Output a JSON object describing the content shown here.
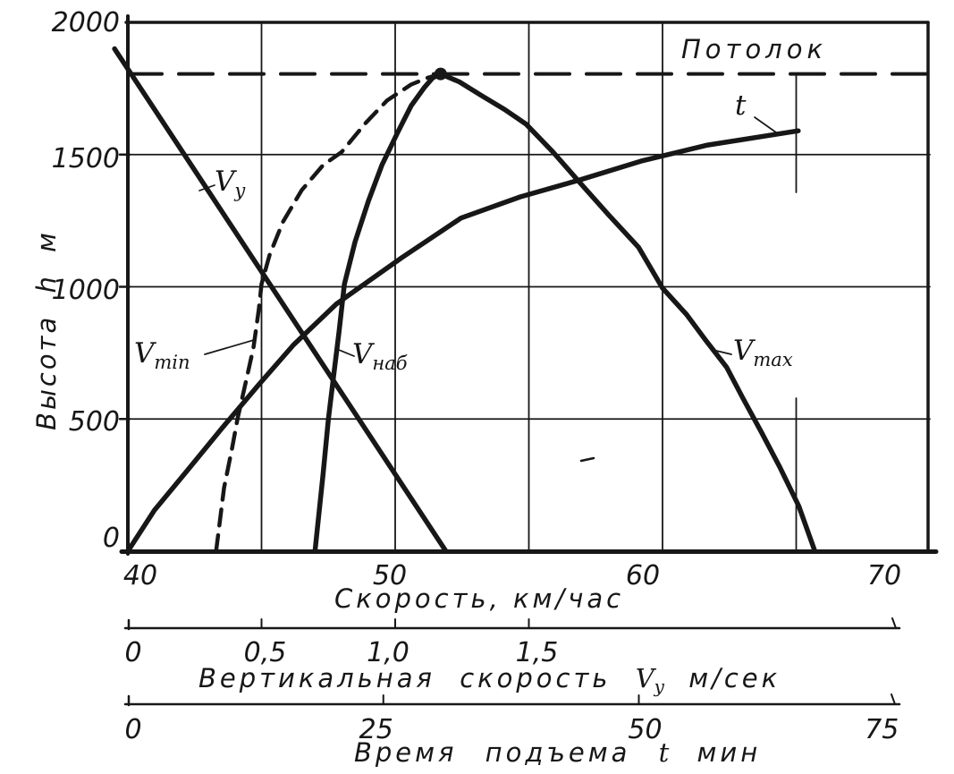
{
  "figure": {
    "description": "Scanned aircraft climb-performance chart",
    "ink_color": "#171717",
    "background": "#ffffff"
  },
  "chart_data": {
    "type": "line",
    "title": "",
    "y_axis": {
      "label": "Высота h м",
      "range": [
        0,
        2000
      ],
      "tick_values": [
        0,
        500,
        1000,
        1500,
        2000
      ],
      "ticks": [
        "0",
        "500",
        "1000",
        "1500",
        "2000"
      ],
      "gridline_values": [
        500,
        1000,
        1500
      ]
    },
    "x_axes": [
      {
        "id": "speed",
        "label": "Скорость, км/час",
        "range": [
          40,
          70
        ],
        "tick_values": [
          40,
          50,
          60,
          70
        ],
        "ticks": [
          "40",
          "50",
          "60",
          "70"
        ],
        "gridline_values": [
          45,
          50,
          55,
          60,
          65
        ]
      },
      {
        "id": "vertical_speed",
        "label": "Вертикальная скорость Vy м/сек",
        "label_prefix": "Вертикальная скорость",
        "label_var": "V",
        "label_var_sub": "y",
        "label_suffix": "м/сек",
        "range": [
          0,
          2.9
        ],
        "tick_values": [
          0,
          0.5,
          1.0,
          1.5
        ],
        "ticks": [
          "0",
          "0,5",
          "1,0",
          "1,5"
        ]
      },
      {
        "id": "climb_time",
        "label": "Время подъема t мин",
        "label_prefix": "Время подъема",
        "label_var": "t",
        "label_suffix": "мин",
        "range": [
          0,
          75
        ],
        "tick_values": [
          0,
          25,
          50,
          75
        ],
        "ticks": [
          "0",
          "25",
          "50",
          "75"
        ]
      }
    ],
    "ceiling": {
      "label": "Потолок",
      "height_m": 1805
    },
    "peak_point": {
      "speed_kmh": 51.7,
      "height_m": 1805
    },
    "series": [
      {
        "name": "Vy",
        "label_var": "V",
        "label_sub": "y",
        "style": "solid",
        "x_axis": "vertical_speed",
        "points": [
          [
            -0.05,
            1900
          ],
          [
            1.19,
            0
          ]
        ]
      },
      {
        "name": "Vmin",
        "label_var": "V",
        "label_sub": "min",
        "style": "dashed",
        "x_axis": "speed",
        "points": [
          [
            43.3,
            0
          ],
          [
            43.6,
            240
          ],
          [
            43.9,
            390
          ],
          [
            44.1,
            500
          ],
          [
            44.4,
            635
          ],
          [
            44.7,
            770
          ],
          [
            44.9,
            915
          ],
          [
            45.0,
            1010
          ],
          [
            45.3,
            1120
          ],
          [
            45.8,
            1245
          ],
          [
            46.5,
            1365
          ],
          [
            47.3,
            1460
          ],
          [
            48.0,
            1510
          ],
          [
            48.9,
            1620
          ],
          [
            49.7,
            1705
          ],
          [
            50.6,
            1765
          ],
          [
            51.2,
            1790
          ],
          [
            51.7,
            1805
          ]
        ]
      },
      {
        "name": "Vnab",
        "label_var": "V",
        "label_sub": "наб",
        "style": "solid",
        "x_axis": "speed",
        "points": [
          [
            47.0,
            0
          ],
          [
            47.3,
            290
          ],
          [
            47.5,
            500
          ],
          [
            47.7,
            665
          ],
          [
            47.9,
            830
          ],
          [
            48.1,
            1010
          ],
          [
            48.5,
            1170
          ],
          [
            49.0,
            1325
          ],
          [
            49.5,
            1460
          ],
          [
            50.1,
            1585
          ],
          [
            50.6,
            1685
          ],
          [
            51.1,
            1755
          ],
          [
            51.4,
            1790
          ],
          [
            51.7,
            1805
          ]
        ]
      },
      {
        "name": "Vmax",
        "label_var": "V",
        "label_sub": "max",
        "style": "solid",
        "x_axis": "speed",
        "points": [
          [
            51.7,
            1805
          ],
          [
            52.4,
            1775
          ],
          [
            53.2,
            1725
          ],
          [
            54.1,
            1670
          ],
          [
            54.9,
            1615
          ],
          [
            55.9,
            1510
          ],
          [
            56.9,
            1395
          ],
          [
            58.0,
            1270
          ],
          [
            59.1,
            1150
          ],
          [
            60.0,
            995
          ],
          [
            60.9,
            895
          ],
          [
            61.6,
            800
          ],
          [
            62.4,
            695
          ],
          [
            63.0,
            580
          ],
          [
            63.7,
            450
          ],
          [
            64.4,
            315
          ],
          [
            65.1,
            170
          ],
          [
            65.7,
            0
          ]
        ]
      },
      {
        "name": "t",
        "label_var": "t",
        "label_sub": "",
        "style": "solid",
        "x_axis": "climb_time",
        "points": [
          [
            0,
            0
          ],
          [
            2.6,
            155
          ],
          [
            5.7,
            300
          ],
          [
            9.2,
            465
          ],
          [
            12.7,
            625
          ],
          [
            16.2,
            780
          ],
          [
            20.4,
            935
          ],
          [
            26.8,
            1110
          ],
          [
            32.6,
            1260
          ],
          [
            38.4,
            1340
          ],
          [
            44.3,
            1405
          ],
          [
            50.2,
            1475
          ],
          [
            56.6,
            1535
          ],
          [
            65.6,
            1590
          ]
        ]
      }
    ]
  }
}
